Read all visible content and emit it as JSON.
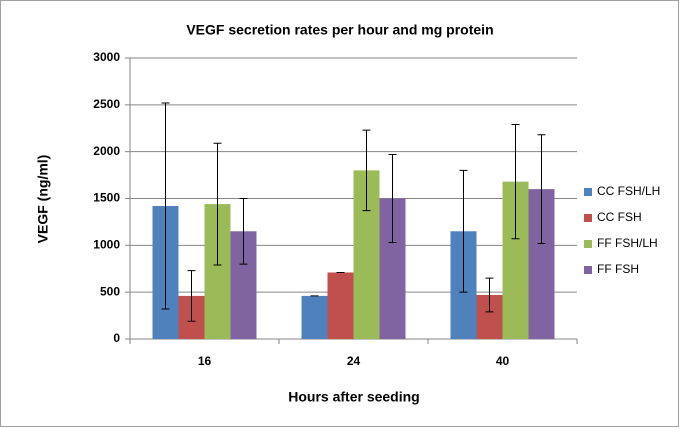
{
  "chart_data": {
    "type": "bar",
    "title": "VEGF secretion rates per hour and mg protein",
    "x_label": "Hours after seeding",
    "y_label": "VEGF (ng/ml)",
    "categories": [
      "16",
      "24",
      "40"
    ],
    "series": [
      {
        "name": "CC FSH/LH",
        "color": "#4f81bd",
        "values": [
          1420,
          460,
          1150
        ],
        "errors": [
          1100,
          0,
          650
        ]
      },
      {
        "name": "CC FSH",
        "color": "#c0504d",
        "values": [
          460,
          710,
          470
        ],
        "errors": [
          270,
          0,
          180
        ]
      },
      {
        "name": "FF FSH/LH",
        "color": "#9bbb59",
        "values": [
          1440,
          1800,
          1680
        ],
        "errors": [
          650,
          430,
          610
        ]
      },
      {
        "name": "FF FSH",
        "color": "#8064a2",
        "values": [
          1150,
          1500,
          1600
        ],
        "errors": [
          350,
          470,
          580
        ]
      }
    ],
    "ylim": [
      0,
      3000
    ],
    "yticks": [
      0,
      500,
      1000,
      1500,
      2000,
      2500,
      3000
    ],
    "grid": true,
    "legend": "right"
  }
}
